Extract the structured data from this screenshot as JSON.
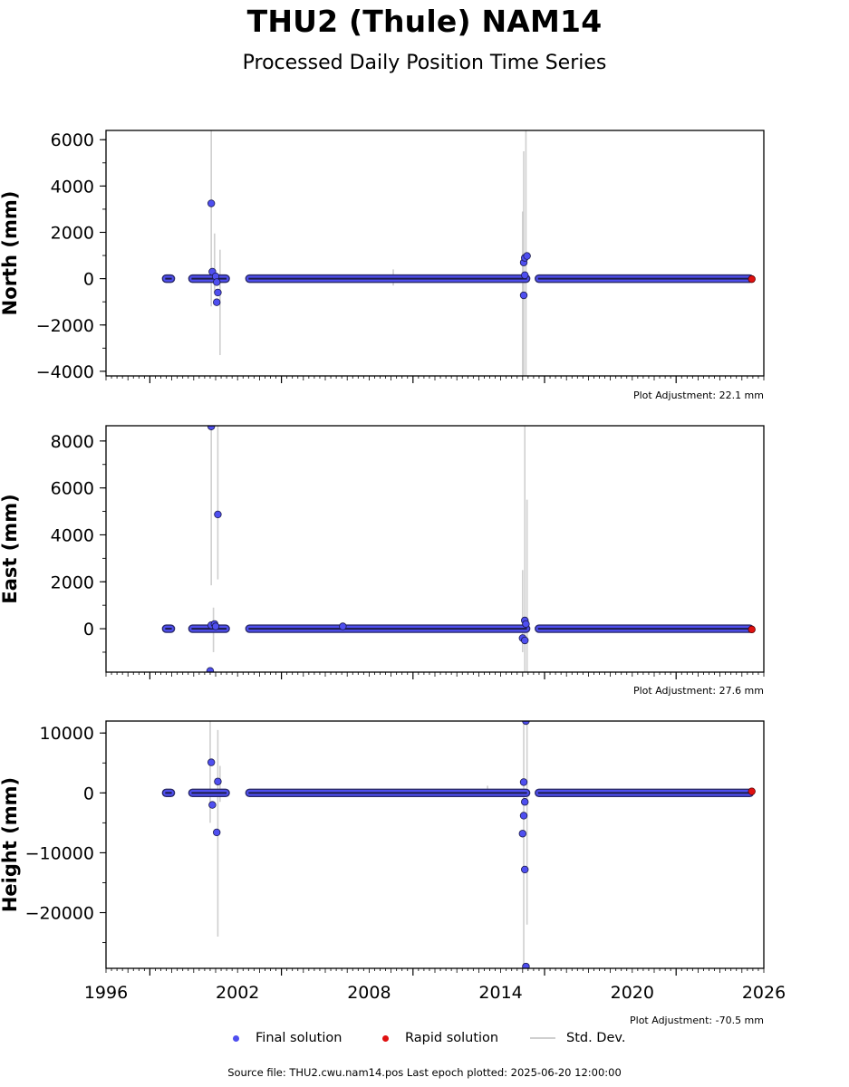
{
  "title": "THU2 (Thule) NAM14",
  "subtitle": "Processed Daily Position Time Series",
  "footer": {
    "source_text": "Source file: THU2.cwu.nam14.pos  Last epoch plotted: 2025-06-20 12:00:00"
  },
  "legend": {
    "final_label": "Final solution",
    "rapid_label": "Rapid solution",
    "stddev_label": "Std. Dev."
  },
  "colors": {
    "final": "#4f4ff0",
    "rapid": "#e01010",
    "stddev": "#cfcfcf",
    "segment": "#2a2a6a"
  },
  "chart_data": [
    {
      "type": "scatter",
      "ylabel": "North (mm)",
      "adjustment": "Plot Adjustment: 22.1 mm",
      "xlim": [
        1996,
        2026
      ],
      "ylim": [
        -4200,
        6400
      ],
      "yticks": [
        6000,
        4000,
        2000,
        0,
        -2000,
        -4000
      ],
      "ytick_labels": [
        "6000",
        "4000",
        "2000",
        "0",
        "−2000",
        "−4000"
      ],
      "dense_segments": [
        [
          1998.7,
          1999.0
        ],
        [
          1999.9,
          2001.5
        ],
        [
          2002.5,
          2015.2
        ],
        [
          2015.7,
          2025.4
        ]
      ],
      "points": [
        {
          "x": 2000.8,
          "y": 3250
        },
        {
          "x": 2000.85,
          "y": 300
        },
        {
          "x": 2001.0,
          "y": 100
        },
        {
          "x": 2001.05,
          "y": -150
        },
        {
          "x": 2001.1,
          "y": -600
        },
        {
          "x": 2001.05,
          "y": -1020
        },
        {
          "x": 2015.05,
          "y": 700
        },
        {
          "x": 2015.1,
          "y": 900
        },
        {
          "x": 2015.2,
          "y": 980
        },
        {
          "x": 2015.1,
          "y": 150
        },
        {
          "x": 2015.05,
          "y": -720
        }
      ],
      "rapid_points": [
        {
          "x": 2025.45,
          "y": -20
        }
      ],
      "error_bars": [
        {
          "x": 2000.8,
          "y0": -1200,
          "y1": 6400
        },
        {
          "x": 2000.95,
          "y0": -600,
          "y1": 1950
        },
        {
          "x": 2001.2,
          "y0": -3300,
          "y1": 1250
        },
        {
          "x": 2009.1,
          "y0": -300,
          "y1": 400
        },
        {
          "x": 2015.05,
          "y0": -4200,
          "y1": 5500
        },
        {
          "x": 2015.15,
          "y0": -4200,
          "y1": 6400
        },
        {
          "x": 2015.0,
          "y0": -4200,
          "y1": 2900
        }
      ],
      "grid": false
    },
    {
      "type": "scatter",
      "ylabel": "East (mm)",
      "adjustment": "Plot Adjustment: 27.6 mm",
      "xlim": [
        1996,
        2026
      ],
      "ylim": [
        -1850,
        8650
      ],
      "yticks": [
        8000,
        6000,
        4000,
        2000,
        0
      ],
      "ytick_labels": [
        "8000",
        "6000",
        "4000",
        "2000",
        "0"
      ],
      "dense_segments": [
        [
          1998.7,
          1999.0
        ],
        [
          1999.9,
          2001.5
        ],
        [
          2002.5,
          2015.2
        ],
        [
          2015.7,
          2025.4
        ]
      ],
      "points": [
        {
          "x": 2000.8,
          "y": 8620
        },
        {
          "x": 2001.1,
          "y": 4870
        },
        {
          "x": 2000.8,
          "y": 150
        },
        {
          "x": 2000.95,
          "y": 200
        },
        {
          "x": 2001.0,
          "y": 100
        },
        {
          "x": 2000.75,
          "y": -1800
        },
        {
          "x": 2015.1,
          "y": 350
        },
        {
          "x": 2015.15,
          "y": 200
        },
        {
          "x": 2015.0,
          "y": -400
        },
        {
          "x": 2015.1,
          "y": -500
        },
        {
          "x": 2006.8,
          "y": 100
        }
      ],
      "rapid_points": [
        {
          "x": 2025.45,
          "y": -30
        }
      ],
      "error_bars": [
        {
          "x": 2000.8,
          "y0": 1850,
          "y1": 8650
        },
        {
          "x": 2001.1,
          "y0": 2100,
          "y1": 8650
        },
        {
          "x": 2000.9,
          "y0": -1000,
          "y1": 900
        },
        {
          "x": 2015.1,
          "y0": -1850,
          "y1": 8650
        },
        {
          "x": 2015.2,
          "y0": -1850,
          "y1": 5500
        },
        {
          "x": 2015.0,
          "y0": -1000,
          "y1": 2500
        }
      ],
      "grid": false
    },
    {
      "type": "scatter",
      "ylabel": "Height (mm)",
      "adjustment": "Plot Adjustment: -70.5 mm",
      "xlim": [
        1996,
        2026
      ],
      "ylim": [
        -29300,
        12000
      ],
      "yticks": [
        10000,
        0,
        -10000,
        -20000
      ],
      "ytick_labels": [
        "10000",
        "0",
        "−10000",
        "−20000"
      ],
      "xticks": [
        1996,
        2002,
        2008,
        2014,
        2020,
        2026
      ],
      "xtick_labels": [
        "1996",
        "2002",
        "2008",
        "2014",
        "2020",
        "2026"
      ],
      "dense_segments": [
        [
          1998.7,
          1999.0
        ],
        [
          1999.9,
          2001.5
        ],
        [
          2002.5,
          2015.2
        ],
        [
          2015.7,
          2025.4
        ]
      ],
      "points": [
        {
          "x": 2000.8,
          "y": 5100
        },
        {
          "x": 2001.1,
          "y": 1900
        },
        {
          "x": 2000.85,
          "y": -2000
        },
        {
          "x": 2001.05,
          "y": -6600
        },
        {
          "x": 2015.15,
          "y": 12000
        },
        {
          "x": 2015.05,
          "y": 1800
        },
        {
          "x": 2015.1,
          "y": -1500
        },
        {
          "x": 2015.05,
          "y": -3800
        },
        {
          "x": 2015.0,
          "y": -6800
        },
        {
          "x": 2015.1,
          "y": -12800
        },
        {
          "x": 2015.15,
          "y": -29000
        }
      ],
      "rapid_points": [
        {
          "x": 2025.45,
          "y": 250
        }
      ],
      "error_bars": [
        {
          "x": 2000.75,
          "y0": -5000,
          "y1": 12000
        },
        {
          "x": 2001.1,
          "y0": -24000,
          "y1": 10500
        },
        {
          "x": 2001.2,
          "y0": -1500,
          "y1": 4500
        },
        {
          "x": 2015.05,
          "y0": -29300,
          "y1": 12000
        },
        {
          "x": 2015.2,
          "y0": -22000,
          "y1": 12000
        },
        {
          "x": 2013.4,
          "y0": -200,
          "y1": 1200
        }
      ],
      "grid": false
    }
  ]
}
